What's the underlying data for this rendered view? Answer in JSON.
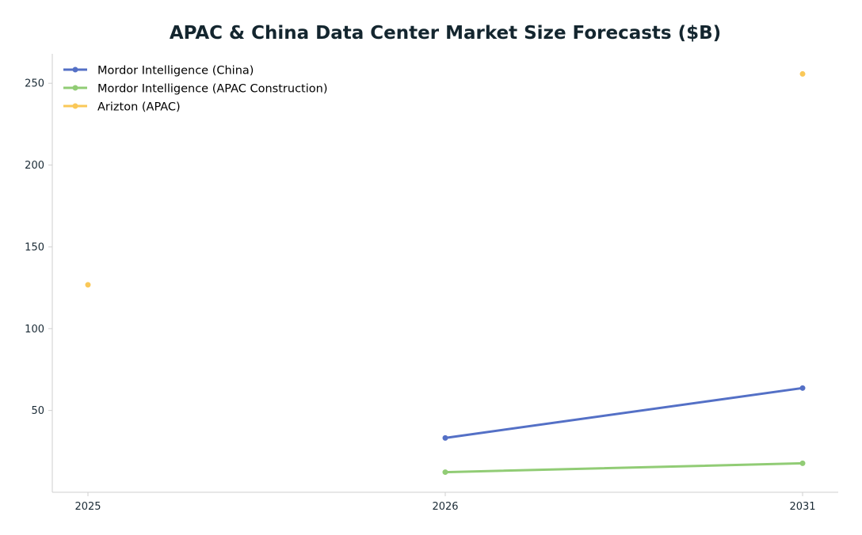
{
  "chart_data": {
    "type": "line",
    "title": "APAC & China Data Center Market Size Forecasts ($B)",
    "xlabel": "",
    "ylabel": "",
    "categories": [
      "2025",
      "2026",
      "2031"
    ],
    "ylim": [
      0,
      268
    ],
    "yticks": [
      50,
      100,
      150,
      200,
      250
    ],
    "grid": false,
    "legend_position": "top-left",
    "series": [
      {
        "name": "Mordor Intelligence (China)",
        "color": "#5470c6",
        "values": [
          null,
          33.2,
          63.7
        ]
      },
      {
        "name": "Mordor Intelligence (APAC Construction)",
        "color": "#91cc75",
        "values": [
          null,
          12.3,
          17.7
        ]
      },
      {
        "name": "Arizton (APAC)",
        "color": "#fac858",
        "values": [
          126.8,
          null,
          255.7
        ]
      }
    ]
  }
}
